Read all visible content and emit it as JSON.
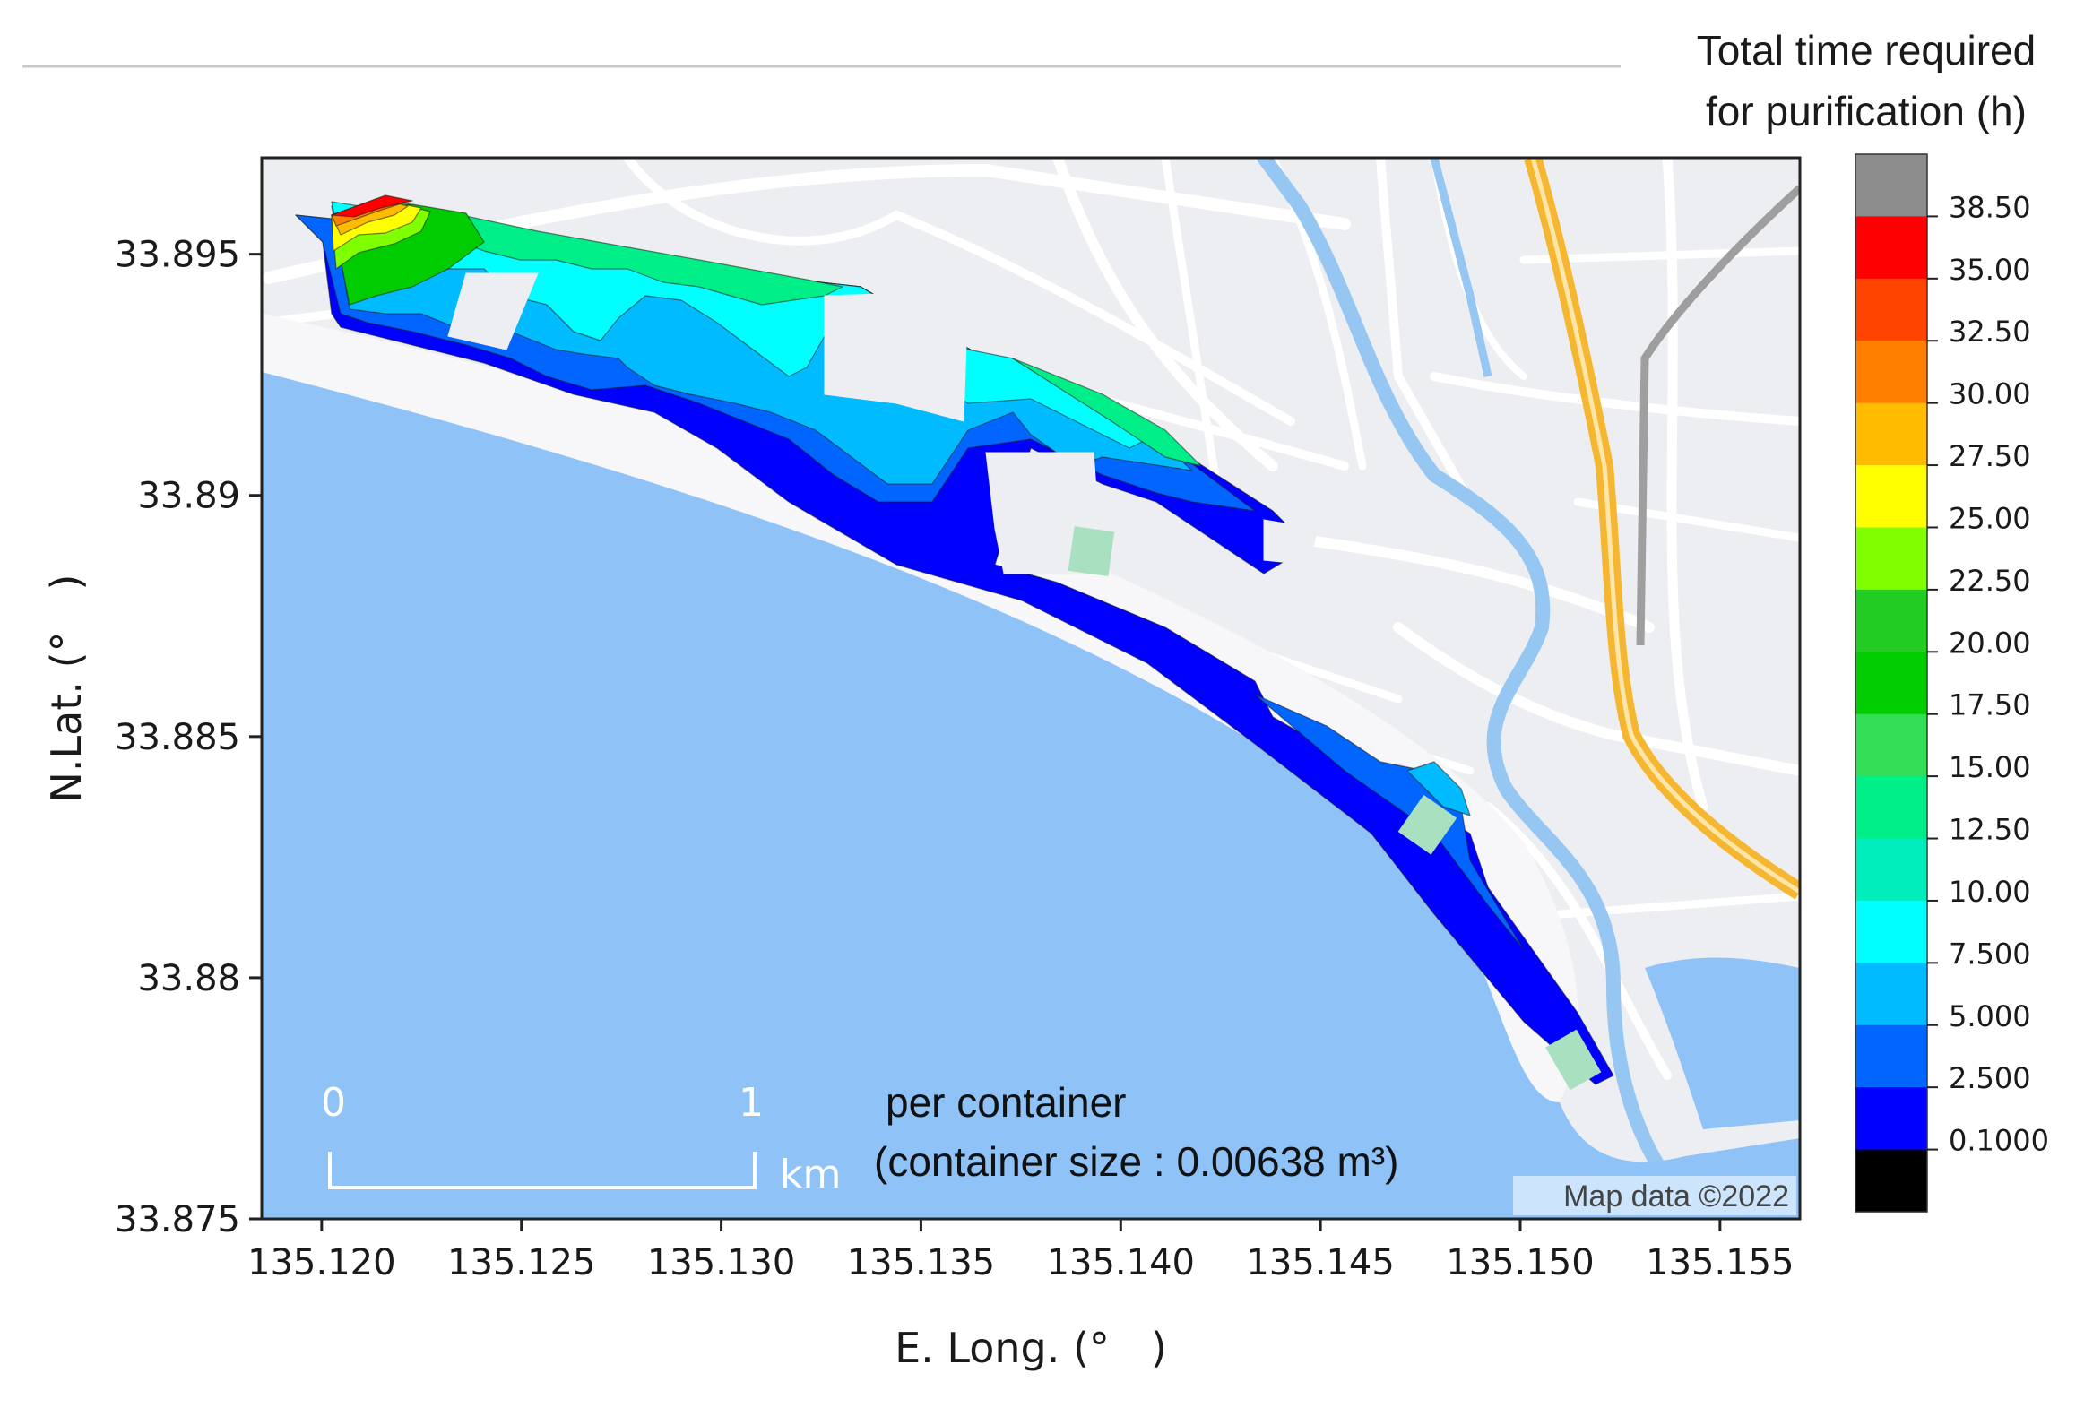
{
  "colorbar": {
    "title_line1": "Total time required",
    "title_line2": "for purification (h)",
    "levels": [
      "38.50",
      "35.00",
      "32.50",
      "30.00",
      "27.50",
      "25.00",
      "22.50",
      "20.00",
      "17.50",
      "15.00",
      "12.50",
      "10.00",
      "7.500",
      "5.000",
      "2.500",
      "0.1000"
    ],
    "colors_top_to_bottom": [
      "#8c8c8c",
      "#ff0000",
      "#ff4400",
      "#ff8000",
      "#ffbb00",
      "#ffff00",
      "#80ff00",
      "#22cc22",
      "#00cc00",
      "#33dd55",
      "#00ee88",
      "#00eebb",
      "#00ffff",
      "#00bbff",
      "#0066ff",
      "#0000ff",
      "#000000"
    ]
  },
  "map": {
    "note_line1": "per container",
    "note_line2": "(container size : 0.00638 m³)",
    "scale_start": "0",
    "scale_end": "1",
    "scale_unit": "km",
    "attribution": "Map data ©2022",
    "colors": {
      "sea": "#8fc3f8",
      "land": "#eceef2",
      "road": "#ffffff",
      "river": "#96c6f2",
      "highway": "#f5b731",
      "rail": "#9e9e9e"
    }
  },
  "chart_data": {
    "type": "heatmap",
    "xlabel": "E. Long. (°　)",
    "ylabel": "N.Lat. (°　)",
    "xlim": [
      135.1185,
      135.157
    ],
    "ylim": [
      33.875,
      33.897
    ],
    "x_ticks": [
      "135.120",
      "135.125",
      "135.130",
      "135.135",
      "135.140",
      "135.145",
      "135.150",
      "135.155"
    ],
    "y_ticks": [
      "33.895",
      "33.89",
      "33.885",
      "33.88",
      "33.875"
    ],
    "colorbar_label": "Total time required for purification (h)",
    "legend": "colorbar right",
    "grid": false
  }
}
